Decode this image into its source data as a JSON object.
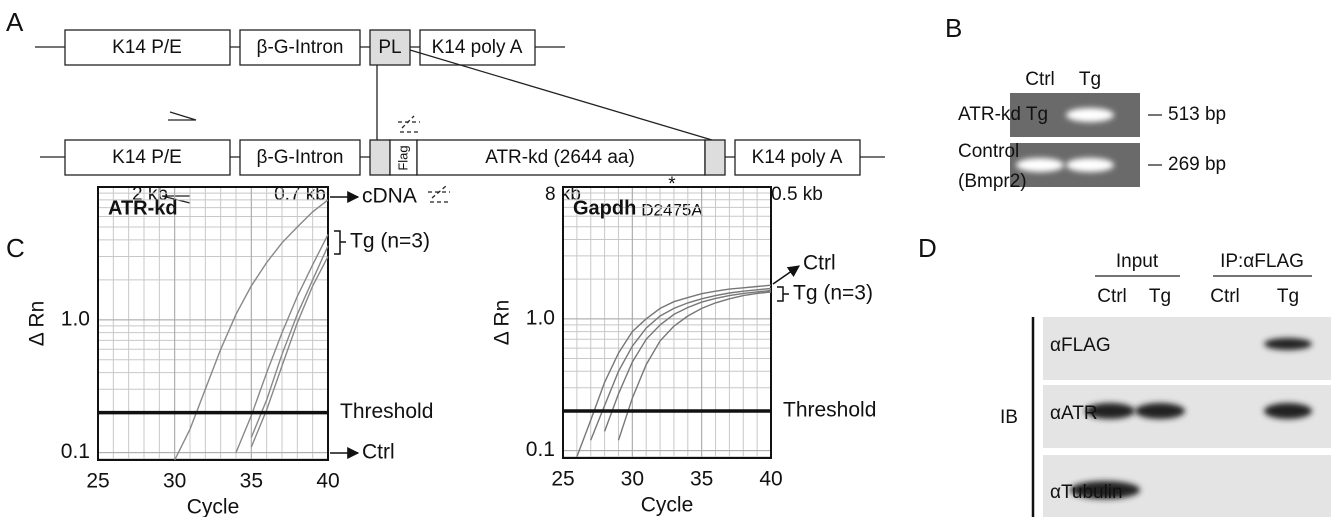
{
  "panel_labels": [
    "A",
    "B",
    "C",
    "D"
  ],
  "construct": {
    "top": [
      "K14 P/E",
      "β-G-Intron",
      "PL",
      "K14 poly A"
    ],
    "bottom": [
      "K14 P/E",
      "β-G-Intron",
      "Flag",
      "ATR-kd (2644 aa)",
      "K14 poly A"
    ],
    "sizes": [
      "2 kb",
      "0.7 kb",
      "8 kb",
      "0.5 kb"
    ],
    "mutation_marker": "*",
    "mutation": "D2475A"
  },
  "genotyping": {
    "columns": [
      "Ctrl",
      "Tg"
    ],
    "rows": [
      {
        "label": "ATR-kd Tg",
        "size": "513 bp"
      },
      {
        "label": [
          "Control",
          "(Bmpr2)"
        ],
        "size": "269 bp"
      }
    ]
  },
  "chart_data": [
    {
      "type": "line",
      "title": "ATR-kd",
      "y_label": "Δ Rn",
      "x_label": "Cycle",
      "yscale": "log",
      "grid": true,
      "x": [
        25,
        26,
        27,
        28,
        29,
        30,
        31,
        32,
        33,
        34,
        35,
        36,
        37,
        38,
        39,
        40
      ],
      "xlim": [
        25,
        40
      ],
      "xticks": [
        25,
        30,
        35,
        40
      ],
      "ylim": [
        0.088,
        10
      ],
      "yticks": [
        0.1,
        {
          "value": 1,
          "label": "1.0"
        }
      ],
      "threshold": 0.2,
      "threshold_label": "Threshold",
      "annotations": [
        "cDNA",
        "Tg (n=3)",
        "Ctrl"
      ],
      "series": [
        {
          "color": "#888888",
          "values": [
            null,
            null,
            null,
            null,
            null,
            0.088,
            0.15,
            0.3,
            0.6,
            1.1,
            1.8,
            2.7,
            3.8,
            5,
            6.5,
            8
          ]
        },
        {
          "color": "#888888",
          "values": [
            null,
            null,
            null,
            null,
            null,
            null,
            null,
            null,
            null,
            0.1,
            0.19,
            0.4,
            0.8,
            1.5,
            2.6,
            4.4
          ]
        },
        {
          "color": "#888888",
          "values": [
            null,
            null,
            null,
            null,
            null,
            null,
            null,
            null,
            null,
            null,
            0.13,
            0.25,
            0.55,
            1.1,
            2,
            3.6
          ]
        },
        {
          "color": "#888888",
          "values": [
            null,
            null,
            null,
            null,
            null,
            null,
            null,
            null,
            null,
            null,
            0.11,
            0.21,
            0.45,
            0.95,
            1.8,
            3
          ]
        }
      ]
    },
    {
      "type": "line",
      "title": "Gapdh",
      "y_label": "Δ Rn",
      "x_label": "Cycle",
      "yscale": "log",
      "grid": true,
      "x": [
        25,
        26,
        27,
        28,
        29,
        30,
        31,
        32,
        33,
        34,
        35,
        36,
        37,
        38,
        39,
        40
      ],
      "xlim": [
        25,
        40
      ],
      "xticks": [
        25,
        30,
        35,
        40
      ],
      "ylim": [
        0.088,
        10
      ],
      "yticks": [
        0.1,
        {
          "value": 1,
          "label": "1.0"
        }
      ],
      "threshold": 0.2,
      "threshold_label": "Threshold",
      "annotations": [
        "Ctrl",
        "Tg (n=3)"
      ],
      "series": [
        {
          "color": "#777777",
          "values": [
            null,
            0.09,
            0.17,
            0.33,
            0.55,
            0.8,
            1.0,
            1.2,
            1.35,
            1.45,
            1.55,
            1.62,
            1.68,
            1.72,
            1.76,
            1.8
          ]
        },
        {
          "color": "#777777",
          "values": [
            null,
            null,
            0.12,
            0.22,
            0.4,
            0.62,
            0.85,
            1.05,
            1.2,
            1.32,
            1.42,
            1.5,
            1.57,
            1.62,
            1.66,
            1.7
          ]
        },
        {
          "color": "#777777",
          "values": [
            null,
            null,
            null,
            0.14,
            0.27,
            0.47,
            0.7,
            0.9,
            1.08,
            1.22,
            1.34,
            1.43,
            1.5,
            1.56,
            1.6,
            1.64
          ]
        },
        {
          "color": "#777777",
          "values": [
            null,
            null,
            null,
            null,
            0.12,
            0.25,
            0.45,
            0.68,
            0.88,
            1.05,
            1.2,
            1.32,
            1.42,
            1.5,
            1.56,
            1.6
          ]
        }
      ]
    }
  ],
  "western": {
    "groups": [
      "Input",
      "IP:αFLAG"
    ],
    "lanes": [
      "Ctrl",
      "Tg",
      "Ctrl",
      "Tg"
    ],
    "method": "IB",
    "rows": [
      "αFLAG",
      "αATR",
      "αTubulin"
    ]
  }
}
